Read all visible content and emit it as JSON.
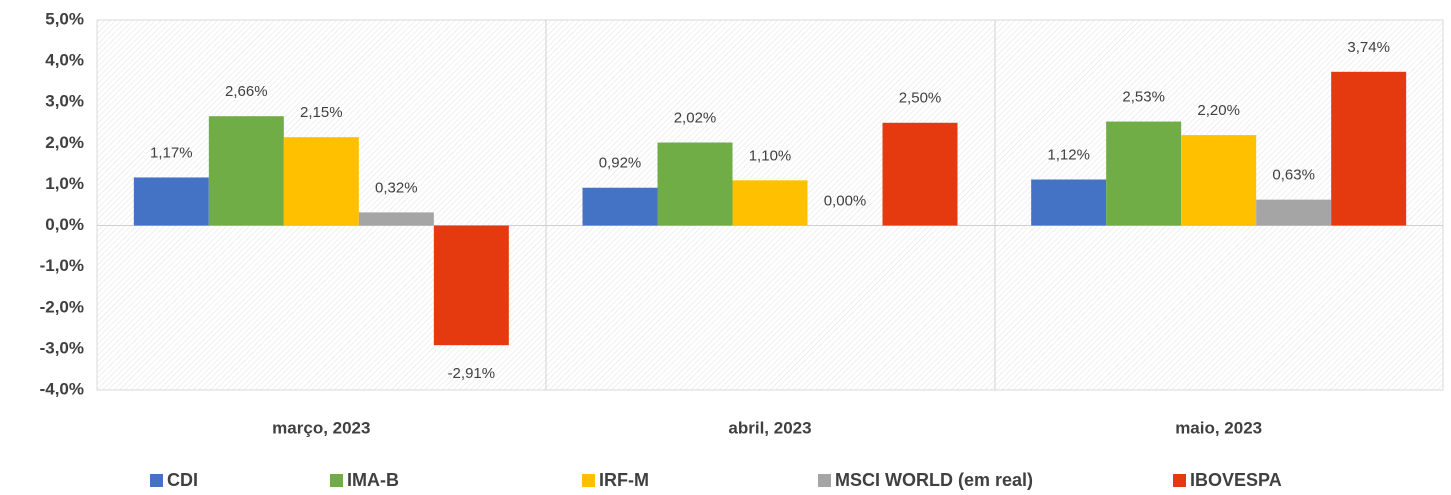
{
  "chart_data": {
    "type": "bar",
    "categories": [
      "março, 2023",
      "abril, 2023",
      "maio, 2023"
    ],
    "series": [
      {
        "name": "CDI",
        "color": "#4472c4",
        "values": [
          1.17,
          0.92,
          1.12
        ],
        "value_labels": [
          "1,17%",
          "0,92%",
          "1,12%"
        ]
      },
      {
        "name": "IMA-B",
        "color": "#70ad47",
        "values": [
          2.66,
          2.02,
          2.53
        ],
        "value_labels": [
          "2,66%",
          "2,02%",
          "2,53%"
        ]
      },
      {
        "name": "IRF-M",
        "color": "#ffc000",
        "values": [
          2.15,
          1.1,
          2.2
        ],
        "value_labels": [
          "2,15%",
          "1,10%",
          "2,20%"
        ]
      },
      {
        "name": "MSCI WORLD (em real)",
        "color": "#a5a5a5",
        "values": [
          0.32,
          0.0,
          0.63
        ],
        "value_labels": [
          "0,32%",
          "0,00%",
          "0,63%"
        ]
      },
      {
        "name": "IBOVESPA",
        "color": "#e53a10",
        "values": [
          -2.91,
          2.5,
          3.74
        ],
        "value_labels": [
          "-2,91%",
          "2,50%",
          "3,74%"
        ]
      }
    ],
    "ylim": [
      -4,
      5
    ],
    "yticks": [
      {
        "value": -4,
        "label": "-4,0%"
      },
      {
        "value": -3,
        "label": "-3,0%"
      },
      {
        "value": -2,
        "label": "-2,0%"
      },
      {
        "value": -1,
        "label": "-1,0%"
      },
      {
        "value": 0,
        "label": "0,0%"
      },
      {
        "value": 1,
        "label": "1,0%"
      },
      {
        "value": 2,
        "label": "2,0%"
      },
      {
        "value": 3,
        "label": "3,0%"
      },
      {
        "value": 4,
        "label": "4,0%"
      },
      {
        "value": 5,
        "label": "5,0%"
      }
    ],
    "grid": false,
    "legend": "bottom"
  }
}
